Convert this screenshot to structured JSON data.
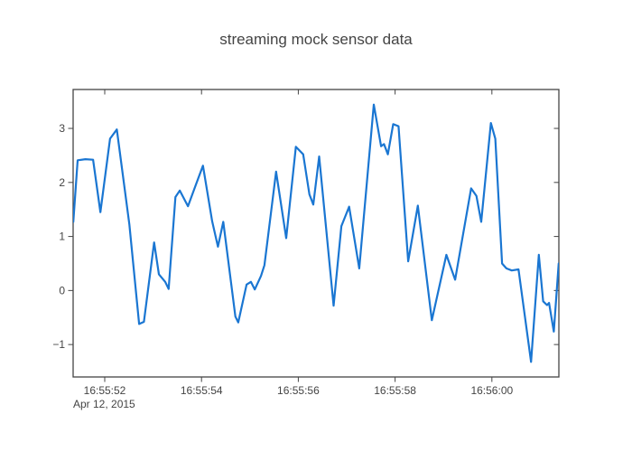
{
  "chart_data": {
    "type": "line",
    "title": "streaming mock sensor data",
    "xlabel": "",
    "ylabel": "",
    "x_axis_date_label": "Apr 12, 2015",
    "x_unit": "seconds after 16:55:52",
    "xlim": [
      -0.653,
      9.384
    ],
    "ylim": [
      -1.6,
      3.72
    ],
    "grid": false,
    "legend_position": "none",
    "axis_color": "#444444",
    "xticks": [
      {
        "t": 0,
        "label": "16:55:52"
      },
      {
        "t": 2,
        "label": "16:55:54"
      },
      {
        "t": 4,
        "label": "16:55:56"
      },
      {
        "t": 6,
        "label": "16:55:58"
      },
      {
        "t": 8,
        "label": "16:56:00"
      }
    ],
    "yticks": [
      {
        "v": 3,
        "label": "3"
      },
      {
        "v": 2,
        "label": "2"
      },
      {
        "v": 1,
        "label": "1"
      },
      {
        "v": 0,
        "label": "0"
      },
      {
        "v": -1,
        "label": "−1"
      }
    ],
    "series": [
      {
        "name": "mock sensor",
        "color": "#1a76d2",
        "line_width": 2.2,
        "points": [
          [
            -0.65,
            1.27
          ],
          [
            -0.56,
            2.41
          ],
          [
            -0.4,
            2.43
          ],
          [
            -0.24,
            2.42
          ],
          [
            -0.09,
            1.45
          ],
          [
            0.11,
            2.81
          ],
          [
            0.25,
            2.98
          ],
          [
            0.51,
            1.22
          ],
          [
            0.71,
            -0.62
          ],
          [
            0.81,
            -0.58
          ],
          [
            1.02,
            0.89
          ],
          [
            1.12,
            0.3
          ],
          [
            1.25,
            0.16
          ],
          [
            1.32,
            0.03
          ],
          [
            1.46,
            1.73
          ],
          [
            1.55,
            1.85
          ],
          [
            1.72,
            1.56
          ],
          [
            1.88,
            1.95
          ],
          [
            2.03,
            2.31
          ],
          [
            2.22,
            1.28
          ],
          [
            2.34,
            0.81
          ],
          [
            2.45,
            1.27
          ],
          [
            2.7,
            -0.48
          ],
          [
            2.76,
            -0.59
          ],
          [
            2.93,
            0.11
          ],
          [
            3.02,
            0.16
          ],
          [
            3.1,
            0.02
          ],
          [
            3.23,
            0.27
          ],
          [
            3.3,
            0.47
          ],
          [
            3.54,
            2.2
          ],
          [
            3.75,
            0.97
          ],
          [
            3.95,
            2.66
          ],
          [
            4.1,
            2.52
          ],
          [
            4.23,
            1.78
          ],
          [
            4.31,
            1.59
          ],
          [
            4.43,
            2.48
          ],
          [
            4.73,
            -0.28
          ],
          [
            4.89,
            1.19
          ],
          [
            5.05,
            1.55
          ],
          [
            5.26,
            0.41
          ],
          [
            5.56,
            3.44
          ],
          [
            5.71,
            2.67
          ],
          [
            5.77,
            2.71
          ],
          [
            5.85,
            2.52
          ],
          [
            5.96,
            3.08
          ],
          [
            6.07,
            3.04
          ],
          [
            6.27,
            0.54
          ],
          [
            6.47,
            1.57
          ],
          [
            6.76,
            -0.55
          ],
          [
            7.06,
            0.66
          ],
          [
            7.24,
            0.2
          ],
          [
            7.57,
            1.89
          ],
          [
            7.68,
            1.75
          ],
          [
            7.78,
            1.27
          ],
          [
            7.98,
            3.1
          ],
          [
            8.07,
            2.81
          ],
          [
            8.21,
            0.5
          ],
          [
            8.3,
            0.41
          ],
          [
            8.41,
            0.37
          ],
          [
            8.55,
            0.39
          ],
          [
            8.81,
            -1.32
          ],
          [
            8.97,
            0.66
          ],
          [
            9.06,
            -0.2
          ],
          [
            9.14,
            -0.27
          ],
          [
            9.18,
            -0.23
          ],
          [
            9.28,
            -0.76
          ],
          [
            9.38,
            0.5
          ]
        ]
      }
    ]
  }
}
